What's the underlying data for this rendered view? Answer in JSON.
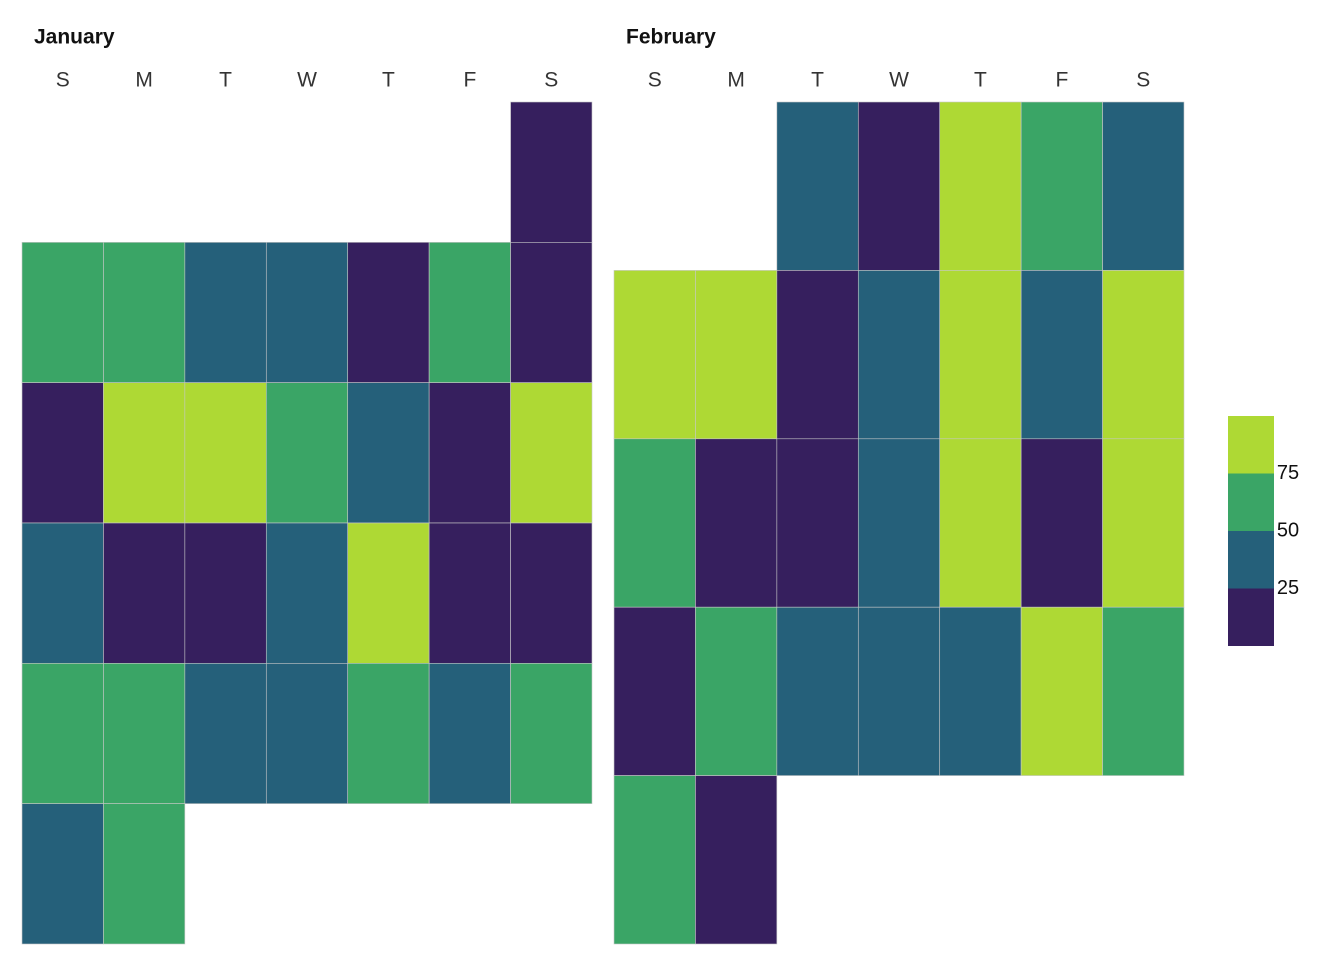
{
  "chart_data": {
    "type": "calendar",
    "months": [
      {
        "title": "January",
        "weekdays": [
          "S",
          "M",
          "T",
          "W",
          "T",
          "F",
          "S"
        ],
        "start_weekday": 6,
        "values": [
          12,
          62,
          62,
          37,
          37,
          12,
          62,
          12,
          12,
          87,
          87,
          62,
          37,
          12,
          87,
          37,
          12,
          12,
          37,
          87,
          12,
          12,
          62,
          62,
          37,
          37,
          62,
          37,
          62,
          37,
          62
        ]
      },
      {
        "title": "February",
        "weekdays": [
          "S",
          "M",
          "T",
          "W",
          "T",
          "F",
          "S"
        ],
        "start_weekday": 2,
        "values": [
          37,
          12,
          87,
          62,
          37,
          87,
          87,
          12,
          37,
          87,
          37,
          87,
          62,
          12,
          12,
          37,
          87,
          12,
          87,
          12,
          62,
          37,
          37,
          37,
          87,
          62,
          62,
          12
        ]
      }
    ],
    "colorbar": {
      "bins": [
        0,
        25,
        50,
        75,
        100
      ],
      "colors": [
        "#361f5e",
        "#25607a",
        "#3aa566",
        "#aed934"
      ],
      "ticks": [
        25,
        50,
        75
      ]
    }
  }
}
